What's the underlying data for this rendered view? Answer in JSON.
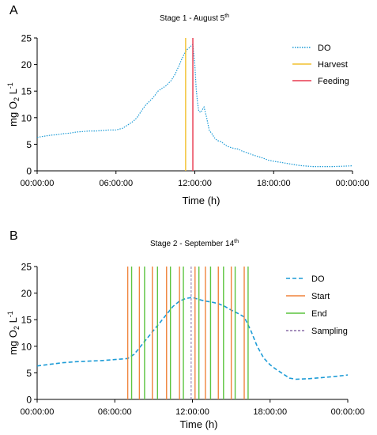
{
  "panels": [
    {
      "letter": "A"
    },
    {
      "letter": "B"
    }
  ],
  "chart_data": [
    {
      "type": "line",
      "title": "Stage 1 - August 5",
      "title_sup": "th",
      "ylabel": "mg O",
      "ylabel_sub": "2",
      "ylabel_unit": " L",
      "ylabel_sup": "-1",
      "xlabel": "Time  (h)",
      "ylim": [
        0,
        25
      ],
      "yticks": [
        "0",
        "5",
        "10",
        "15",
        "20",
        "25"
      ],
      "xlim": [
        0,
        24
      ],
      "xticks": [
        "00:00:00",
        "06:00:00",
        "12:00:00",
        "18:00:00",
        "00:00:00"
      ],
      "legend_position": "top-right",
      "series": [
        {
          "name": "DO",
          "color": "#1c9bd6",
          "style": "dotted",
          "x": [
            0,
            0.5,
            1,
            1.5,
            2,
            2.5,
            3,
            3.5,
            4,
            4.5,
            5,
            5.5,
            6,
            6.5,
            7,
            7.3,
            7.6,
            8,
            8.3,
            8.6,
            8.9,
            9.2,
            9.5,
            9.8,
            10,
            10.2,
            10.5,
            10.8,
            11,
            11.2,
            11.4,
            11.6,
            11.75,
            11.85,
            12,
            12.1,
            12.2,
            12.3,
            12.45,
            12.55,
            12.7,
            12.9,
            13.1,
            13.3,
            13.5,
            13.7,
            14,
            14.3,
            14.6,
            15,
            15.3,
            15.6,
            16,
            16.4,
            16.8,
            17.2,
            17.6,
            18,
            18.5,
            19,
            19.5,
            20,
            20.5,
            21,
            21.5,
            22,
            22.5,
            23,
            23.5,
            24
          ],
          "values": [
            6.3,
            6.5,
            6.7,
            6.8,
            7.0,
            7.1,
            7.3,
            7.4,
            7.5,
            7.5,
            7.6,
            7.7,
            7.7,
            8.0,
            8.8,
            9.3,
            10.0,
            11.5,
            12.5,
            13.2,
            14.0,
            15.0,
            15.5,
            16.0,
            16.5,
            17.0,
            18.2,
            19.8,
            21.0,
            22.0,
            22.8,
            23.2,
            23.6,
            23.8,
            20.0,
            15.5,
            13.0,
            11.2,
            11.0,
            11.4,
            12.0,
            10.0,
            7.6,
            7.0,
            6.2,
            5.7,
            5.5,
            4.9,
            4.5,
            4.2,
            4.1,
            3.7,
            3.4,
            3.0,
            2.7,
            2.4,
            2.0,
            1.8,
            1.6,
            1.4,
            1.2,
            1.0,
            0.9,
            0.8,
            0.8,
            0.8,
            0.8,
            0.85,
            0.9,
            0.95
          ]
        },
        {
          "name": "Harvest",
          "color": "#f2c12e",
          "style": "vline",
          "x": [
            11.3
          ]
        },
        {
          "name": "Feeding",
          "color": "#e8394f",
          "style": "vline",
          "x": [
            11.85
          ]
        }
      ]
    },
    {
      "type": "line",
      "title": "Stage 2 - September 14",
      "title_sup": "th",
      "ylabel": "mg O",
      "ylabel_sub": "2",
      "ylabel_unit": " L",
      "ylabel_sup": "-1",
      "xlabel": "Time  (h)",
      "ylim": [
        0,
        25
      ],
      "yticks": [
        "0",
        "5",
        "10",
        "15",
        "20",
        "25"
      ],
      "xlim": [
        0,
        24
      ],
      "xticks": [
        "00:00:00",
        "06:00:00",
        "12:00:00",
        "18:00:00",
        "00:00:00"
      ],
      "legend_position": "top-right",
      "series": [
        {
          "name": "DO",
          "color": "#1c9bd6",
          "style": "dashed",
          "x": [
            0,
            1,
            2,
            3,
            4,
            5,
            6,
            7,
            7.5,
            8,
            8.5,
            9,
            9.5,
            10,
            10.5,
            11,
            11.5,
            12,
            12.5,
            13,
            13.5,
            14,
            14.5,
            15,
            15.5,
            16,
            16.5,
            17,
            17.5,
            18,
            18.5,
            19,
            19.5,
            20,
            21,
            22,
            23,
            24
          ],
          "values": [
            6.3,
            6.6,
            6.9,
            7.1,
            7.2,
            7.3,
            7.5,
            7.7,
            8.5,
            10.0,
            11.5,
            13.0,
            14.5,
            16.0,
            17.5,
            18.5,
            19.0,
            19.2,
            18.8,
            18.5,
            18.3,
            18.0,
            17.5,
            16.8,
            16.2,
            15.5,
            13.0,
            10.0,
            7.8,
            6.5,
            5.6,
            4.8,
            4.0,
            3.8,
            3.9,
            4.1,
            4.3,
            4.6
          ]
        },
        {
          "name": "Start",
          "color": "#f0843c",
          "style": "vline",
          "x": [
            7.0,
            7.9,
            8.9,
            10.0,
            11.0,
            12.2,
            13.0,
            14.0,
            15.0,
            16.0
          ]
        },
        {
          "name": "End",
          "color": "#5cc43f",
          "style": "vline",
          "x": [
            7.3,
            8.3,
            9.3,
            10.3,
            11.3,
            12.5,
            13.4,
            14.4,
            15.3,
            16.3
          ]
        },
        {
          "name": "Sampling",
          "color": "#8a6fa8",
          "style": "dash-vline",
          "x": [
            11.9
          ]
        }
      ]
    }
  ]
}
